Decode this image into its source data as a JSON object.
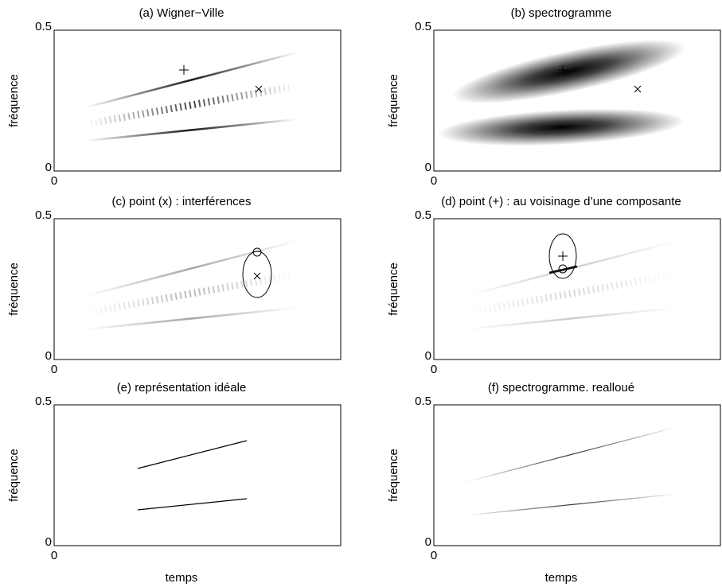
{
  "chart_data": [
    {
      "type": "heatmap",
      "title": "(a) Wigner−Ville",
      "ylabel": "fréquence",
      "ylim": [
        0,
        0.5
      ],
      "yticks": [
        0,
        0.5
      ],
      "xticks": [
        0
      ]
    },
    {
      "type": "heatmap",
      "title": "(b) spectrogramme",
      "ylabel": "fréquence",
      "ylim": [
        0,
        0.5
      ],
      "yticks": [
        0,
        0.5
      ],
      "xticks": [
        0
      ]
    },
    {
      "type": "heatmap",
      "title": "(c) point (x) : interférences",
      "ylabel": "fréquence",
      "ylim": [
        0,
        0.5
      ],
      "yticks": [
        0,
        0.5
      ],
      "xticks": [
        0
      ]
    },
    {
      "type": "heatmap",
      "title": "(d) point (+) : au voisinage d’une composante",
      "ylabel": "fréquence",
      "ylim": [
        0,
        0.5
      ],
      "yticks": [
        0,
        0.5
      ],
      "xticks": [
        0
      ]
    },
    {
      "type": "heatmap",
      "title": "(e) représentation idéale",
      "ylabel": "fréquence",
      "xlabel": "temps",
      "ylim": [
        0,
        0.5
      ],
      "yticks": [
        0,
        0.5
      ],
      "xticks": [
        0
      ]
    },
    {
      "type": "heatmap",
      "title": "(f) spectrogramme. realloué",
      "ylabel": "fréquence",
      "xlabel": "temps",
      "ylim": [
        0,
        0.5
      ],
      "yticks": [
        0,
        0.5
      ],
      "xticks": [
        0
      ]
    }
  ]
}
